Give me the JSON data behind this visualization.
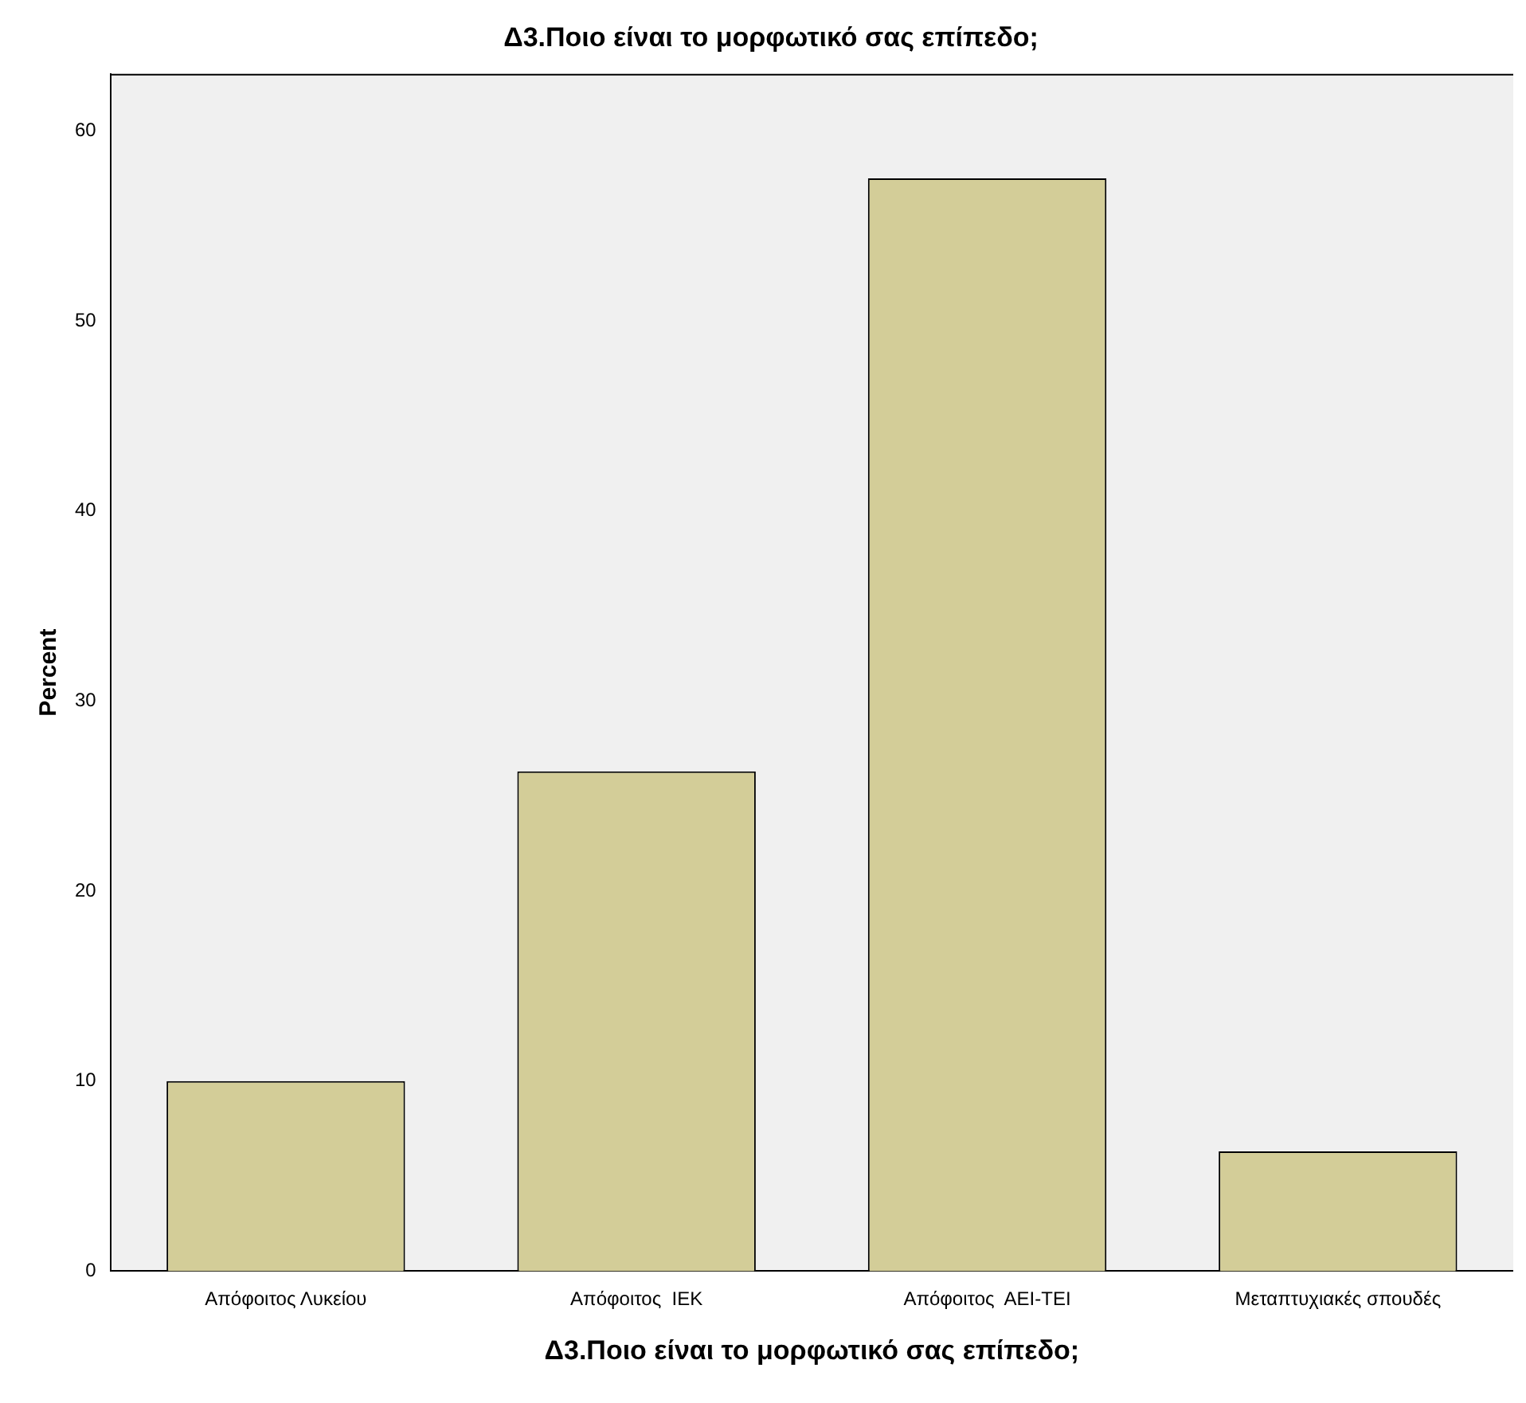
{
  "chart_data": {
    "type": "bar",
    "title": "Δ3.Ποιο είναι το μορφωτικό σας επίπεδο;",
    "xlabel": "Δ3.Ποιο είναι το μορφωτικό σας επίπεδο;",
    "ylabel": "Percent",
    "categories": [
      "Απόφοιτος Λυκείου",
      "Απόφοιτος  ΙΕΚ",
      "Απόφοιτος  ΑΕΙ-ΤΕΙ",
      "Μεταπτυχιακές σπουδές"
    ],
    "values": [
      10.0,
      26.3,
      57.5,
      6.3
    ],
    "color": "#d3cd98",
    "ylim": [
      0,
      63
    ],
    "yticks": [
      0,
      10,
      20,
      30,
      40,
      50,
      60
    ],
    "grid": false,
    "legend": false
  }
}
